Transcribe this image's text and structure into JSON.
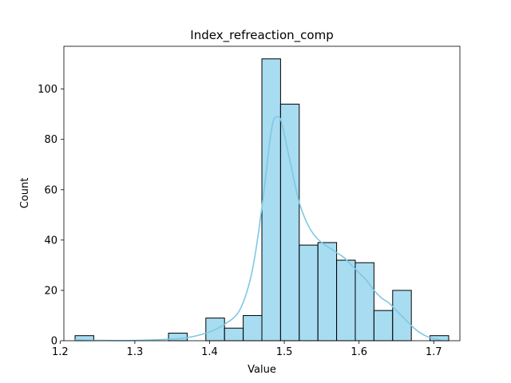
{
  "chart_data": {
    "type": "histogram",
    "title": "Index_refreaction_comp",
    "xlabel": "Value",
    "ylabel": "Count",
    "xlim": [
      1.205,
      1.735
    ],
    "ylim": [
      0,
      117
    ],
    "xticks": [
      1.2,
      1.3,
      1.4,
      1.5,
      1.6,
      1.7
    ],
    "yticks": [
      0,
      20,
      40,
      60,
      80,
      100
    ],
    "grid": false,
    "colors": {
      "bar_fill": "#87ceeb",
      "bar_stroke": "#000000",
      "kde_line": "#7ec8e3"
    },
    "bins": [
      {
        "x0": 1.22,
        "x1": 1.245,
        "count": 2
      },
      {
        "x0": 1.245,
        "x1": 1.27,
        "count": 0
      },
      {
        "x0": 1.27,
        "x1": 1.295,
        "count": 0
      },
      {
        "x0": 1.295,
        "x1": 1.32,
        "count": 0
      },
      {
        "x0": 1.32,
        "x1": 1.345,
        "count": 0
      },
      {
        "x0": 1.345,
        "x1": 1.37,
        "count": 3
      },
      {
        "x0": 1.37,
        "x1": 1.395,
        "count": 0
      },
      {
        "x0": 1.395,
        "x1": 1.42,
        "count": 9
      },
      {
        "x0": 1.42,
        "x1": 1.445,
        "count": 5
      },
      {
        "x0": 1.445,
        "x1": 1.47,
        "count": 10
      },
      {
        "x0": 1.47,
        "x1": 1.495,
        "count": 112
      },
      {
        "x0": 1.495,
        "x1": 1.52,
        "count": 94
      },
      {
        "x0": 1.52,
        "x1": 1.545,
        "count": 38
      },
      {
        "x0": 1.545,
        "x1": 1.57,
        "count": 39
      },
      {
        "x0": 1.57,
        "x1": 1.595,
        "count": 32
      },
      {
        "x0": 1.595,
        "x1": 1.62,
        "count": 31
      },
      {
        "x0": 1.62,
        "x1": 1.645,
        "count": 12
      },
      {
        "x0": 1.645,
        "x1": 1.67,
        "count": 20
      },
      {
        "x0": 1.67,
        "x1": 1.695,
        "count": 0
      },
      {
        "x0": 1.695,
        "x1": 1.72,
        "count": 2
      }
    ],
    "kde": {
      "x": [
        1.22,
        1.26,
        1.3,
        1.34,
        1.37,
        1.4,
        1.42,
        1.44,
        1.455,
        1.465,
        1.475,
        1.48,
        1.485,
        1.49,
        1.495,
        1.5,
        1.51,
        1.52,
        1.53,
        1.54,
        1.55,
        1.56,
        1.57,
        1.58,
        1.59,
        1.6,
        1.61,
        1.62,
        1.63,
        1.64,
        1.65,
        1.66,
        1.67,
        1.68,
        1.69,
        1.7,
        1.71
      ],
      "y": [
        0.3,
        0.1,
        0.1,
        0.5,
        1.2,
        3.5,
        6.5,
        12,
        25,
        42,
        65,
        78,
        87,
        89,
        88,
        82,
        68,
        55,
        47,
        42,
        39,
        37,
        35,
        33,
        30,
        27,
        24,
        20,
        17,
        15,
        12,
        9,
        6,
        3.5,
        1.8,
        0.8,
        0.3
      ]
    }
  }
}
